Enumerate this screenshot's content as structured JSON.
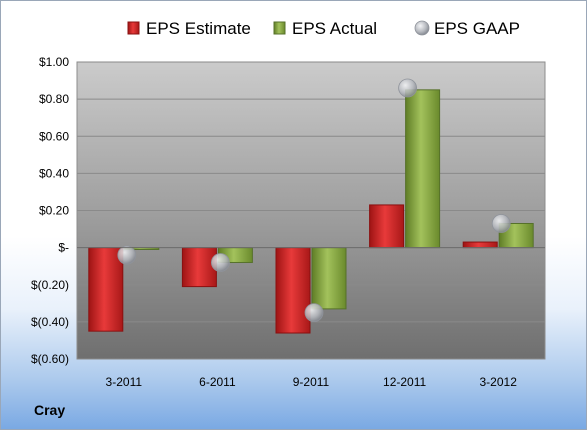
{
  "chart_data": {
    "type": "bar",
    "title": "",
    "xlabel": "",
    "ylabel": "",
    "categories": [
      "3-2011",
      "6-2011",
      "9-2011",
      "12-2011",
      "3-2012"
    ],
    "series": [
      {
        "name": "EPS Estimate",
        "kind": "bar",
        "color": "#d42a2a",
        "values": [
          -0.45,
          -0.21,
          -0.46,
          0.23,
          0.03
        ]
      },
      {
        "name": "EPS Actual",
        "kind": "bar",
        "color": "#8fb04a",
        "values": [
          -0.01,
          -0.08,
          -0.33,
          0.85,
          0.13
        ]
      },
      {
        "name": "EPS GAAP",
        "kind": "marker",
        "color": "#b9bcc3",
        "values": [
          -0.04,
          -0.08,
          -0.35,
          0.86,
          0.13
        ]
      }
    ],
    "ylim": [
      -0.6,
      1.0
    ],
    "yticks": [
      1.0,
      0.8,
      0.6,
      0.4,
      0.2,
      0.0,
      -0.2,
      -0.4,
      -0.6
    ],
    "yticklabels": [
      "$1.00",
      "$0.80",
      "$0.60",
      "$0.40",
      "$0.20",
      "$-",
      "$(0.20)",
      "$(0.40)",
      "$(0.60)"
    ],
    "grid": true,
    "legend": "top"
  },
  "company": "Cray"
}
